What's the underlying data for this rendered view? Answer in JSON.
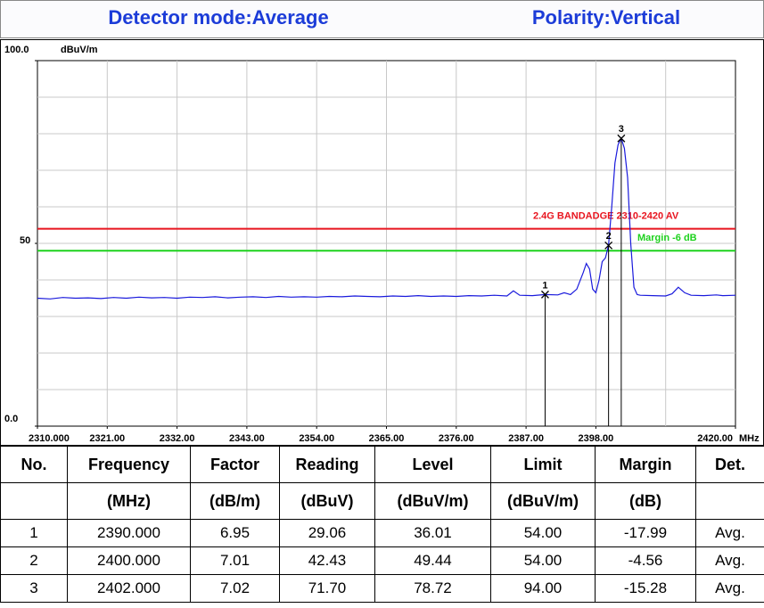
{
  "header": {
    "left": "Detector mode:Average",
    "right": "Polarity:Vertical"
  },
  "chart_data": {
    "type": "line",
    "ylabel": "dBuV/m",
    "xlabel": "MHz",
    "xlim": [
      2310,
      2420
    ],
    "ylim": [
      0,
      100
    ],
    "yticks": [
      {
        "value": 0,
        "label": "0.0"
      },
      50,
      {
        "value": 100,
        "label": "100.0"
      }
    ],
    "xticks": [
      {
        "value": 2310,
        "label": "2310.000"
      },
      {
        "value": 2321,
        "label": "2321.00"
      },
      {
        "value": 2332,
        "label": "2332.00"
      },
      {
        "value": 2343,
        "label": "2343.00"
      },
      {
        "value": 2354,
        "label": "2354.00"
      },
      {
        "value": 2365,
        "label": "2365.00"
      },
      {
        "value": 2376,
        "label": "2376.00"
      },
      {
        "value": 2387,
        "label": "2387.00"
      },
      {
        "value": 2398,
        "label": "2398.00"
      },
      {
        "value": 2420,
        "label": "2420.00"
      }
    ],
    "grid": true,
    "series": [
      {
        "color": "#1a1adc",
        "x": [
          2310,
          2312,
          2314,
          2316,
          2318,
          2320,
          2322,
          2324,
          2326,
          2328,
          2330,
          2332,
          2334,
          2336,
          2338,
          2340,
          2342,
          2344,
          2346,
          2348,
          2350,
          2352,
          2354,
          2356,
          2358,
          2360,
          2362,
          2364,
          2366,
          2368,
          2370,
          2372,
          2374,
          2376,
          2378,
          2380,
          2382,
          2384,
          2385,
          2386,
          2388,
          2390,
          2392,
          2393,
          2394,
          2395,
          2396,
          2396.5,
          2397,
          2397.5,
          2398,
          2398.5,
          2399,
          2399.5,
          2400,
          2400.5,
          2401,
          2401.5,
          2402,
          2402.5,
          2403,
          2403.5,
          2404,
          2404.5,
          2405,
          2407,
          2409,
          2410,
          2411,
          2412,
          2413,
          2415,
          2417,
          2418,
          2420
        ],
        "values": [
          35.0,
          34.8,
          35.2,
          35.0,
          35.1,
          34.9,
          35.2,
          35.0,
          35.3,
          35.1,
          35.2,
          35.0,
          35.3,
          35.2,
          35.4,
          35.1,
          35.3,
          35.4,
          35.2,
          35.5,
          35.3,
          35.4,
          35.3,
          35.5,
          35.4,
          35.6,
          35.5,
          35.4,
          35.6,
          35.5,
          35.7,
          35.5,
          35.6,
          35.5,
          35.7,
          35.6,
          35.8,
          35.6,
          37.0,
          35.8,
          35.7,
          36.01,
          35.9,
          36.5,
          36.0,
          37.5,
          42,
          44.5,
          43,
          37.5,
          36.5,
          40,
          45,
          46,
          49.44,
          60,
          72,
          77,
          78.72,
          76,
          68,
          50,
          38,
          36,
          35.8,
          35.7,
          35.6,
          36.2,
          38.0,
          36.5,
          35.8,
          35.7,
          35.9,
          35.7,
          35.8
        ]
      }
    ],
    "limit_lines": [
      {
        "value": 54,
        "color": "#e8141e",
        "label": "2.4G BANDADGE 2310-2420 AV"
      },
      {
        "value": 48,
        "color": "#1ed21e",
        "label": "Margin -6 dB"
      }
    ],
    "markers": {
      "labels": [
        "1",
        "2",
        "3"
      ],
      "x": [
        2390,
        2400,
        2402
      ],
      "values": [
        36.01,
        49.44,
        78.72
      ]
    }
  },
  "table": {
    "header": [
      [
        "No.",
        "Frequency",
        "Factor",
        "Reading",
        "Level",
        "Limit",
        "Margin",
        "Det."
      ],
      [
        "",
        "(MHz)",
        "(dB/m)",
        "(dBuV)",
        "(dBuV/m)",
        "(dBuV/m)",
        "(dB)",
        ""
      ]
    ],
    "rows": [
      [
        "1",
        "2390.000",
        "6.95",
        "29.06",
        "36.01",
        "54.00",
        "-17.99",
        "Avg."
      ],
      [
        "2",
        "2400.000",
        "7.01",
        "42.43",
        "49.44",
        "54.00",
        "-4.56",
        "Avg."
      ],
      [
        "3",
        "2402.000",
        "7.02",
        "71.70",
        "78.72",
        "94.00",
        "-15.28",
        "Avg."
      ]
    ]
  }
}
